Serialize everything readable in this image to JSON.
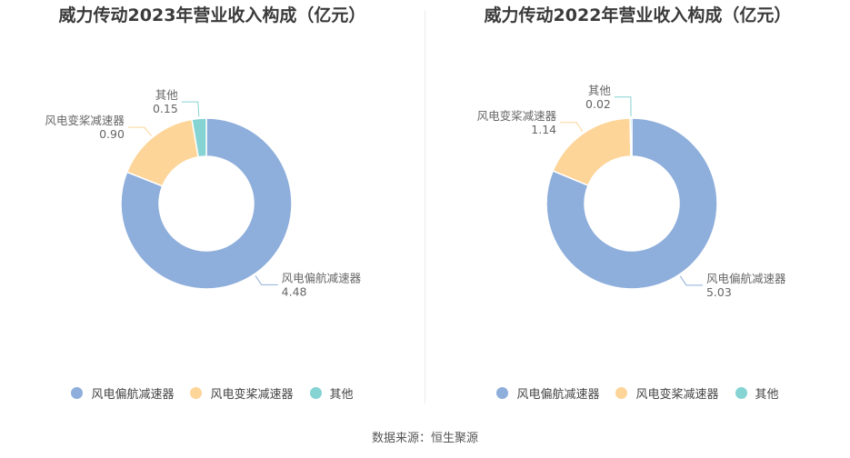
{
  "colors": {
    "s1": "#8eaedb",
    "s2": "#fdd599",
    "s3": "#86d3d3"
  },
  "source": "数据来源：恒生聚源",
  "chart_data": [
    {
      "type": "pie",
      "title": "威力传动2023年营业收入构成（亿元）",
      "categories": [
        "风电偏航减速器",
        "风电变桨减速器",
        "其他"
      ],
      "values": [
        4.48,
        0.9,
        0.15
      ],
      "value_labels": [
        "4.48",
        "0.90",
        "0.15"
      ],
      "legend": "bottom"
    },
    {
      "type": "pie",
      "title": "威力传动2022年营业收入构成（亿元）",
      "categories": [
        "风电偏航减速器",
        "风电变桨减速器",
        "其他"
      ],
      "values": [
        5.03,
        1.14,
        0.02
      ],
      "value_labels": [
        "5.03",
        "1.14",
        "0.02"
      ],
      "legend": "bottom"
    }
  ]
}
